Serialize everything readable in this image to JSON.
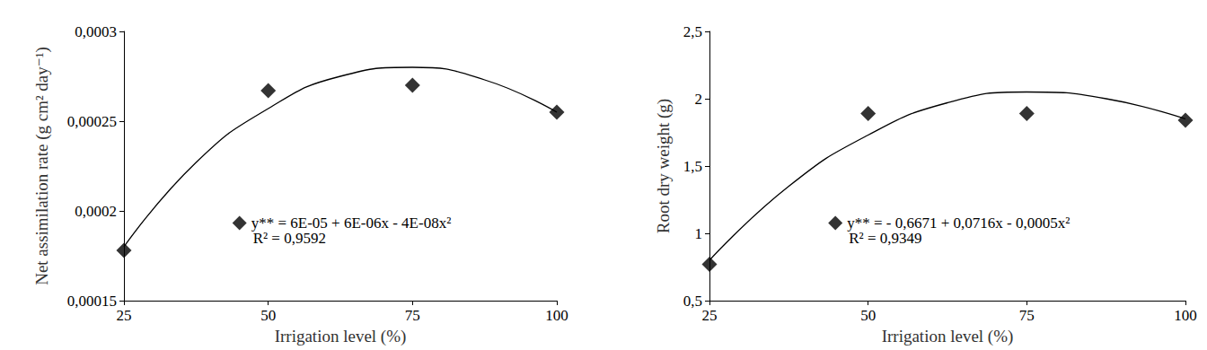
{
  "chart_data": [
    {
      "type": "scatter",
      "xlabel": "Irrigation level (%)",
      "ylabel": "Net assimilation rate (g cm² day⁻¹)",
      "x": [
        25,
        50,
        75,
        100
      ],
      "series": [
        {
          "name": "y** = 6E-05 + 6E-06x - 4E-08x²",
          "color": "#000000",
          "marker": "diamond",
          "values": [
            0.000178,
            0.000267,
            0.00027,
            0.000255
          ]
        }
      ],
      "trend": {
        "x": [
          25,
          37.5,
          50,
          62.5,
          75,
          87.5,
          100
        ],
        "values": [
          0.00018,
          0.000227,
          0.000257,
          0.000275,
          0.00028,
          0.000273,
          0.000255
        ],
        "color": "#000000",
        "line_style": "solid"
      },
      "annotations": [
        "R² = 0,9592"
      ],
      "legend": "lower center",
      "xlim": [
        25,
        100
      ],
      "xticks": [
        25,
        50,
        75,
        100
      ],
      "ylim": [
        0.00015,
        0.0003
      ],
      "yticks": [
        {
          "value": 0.00015,
          "label": "0,00015"
        },
        {
          "value": 0.0002,
          "label": "0,0002"
        },
        {
          "value": 0.00025,
          "label": "0,00025"
        },
        {
          "value": 0.0003,
          "label": "0,0003"
        }
      ],
      "grid": false
    },
    {
      "type": "scatter",
      "xlabel": "Irrigation level (%)",
      "ylabel": "Root dry weight (g)",
      "x": [
        25,
        50,
        75,
        100
      ],
      "series": [
        {
          "name": "y** = - 0,6671 + 0,0716x - 0,0005x²",
          "color": "#000000",
          "marker": "diamond",
          "values": [
            0.77,
            1.89,
            1.89,
            1.84
          ]
        }
      ],
      "trend": {
        "x": [
          25,
          37.5,
          50,
          62.5,
          75,
          87.5,
          100
        ],
        "values": [
          0.8,
          1.35,
          1.73,
          1.97,
          2.05,
          2.0,
          1.85
        ],
        "color": "#000000",
        "line_style": "solid"
      },
      "annotations": [
        "R² = 0,9349"
      ],
      "legend": "lower center",
      "xlim": [
        25,
        100
      ],
      "xticks": [
        25,
        50,
        75,
        100
      ],
      "ylim": [
        0.5,
        2.5
      ],
      "yticks": [
        {
          "value": 0.5,
          "label": "0,5"
        },
        1,
        {
          "value": 1.5,
          "label": "1,5"
        },
        2,
        {
          "value": 2.5,
          "label": "2,5"
        }
      ],
      "grid": false
    }
  ]
}
